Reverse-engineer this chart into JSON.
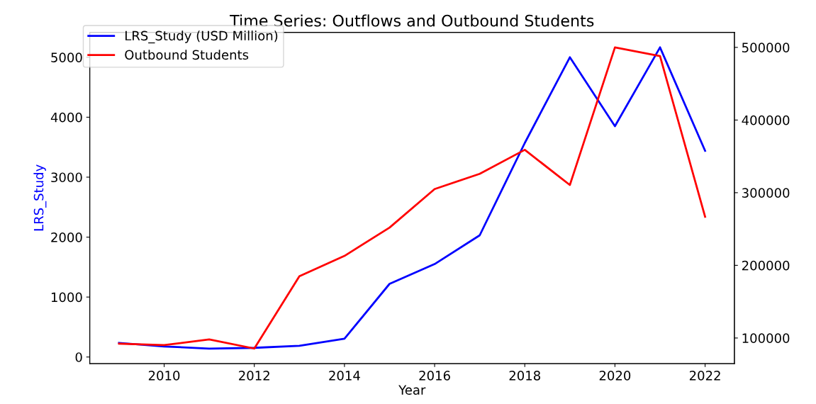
{
  "chart_data": {
    "type": "line",
    "title": "Time Series: Outflows and Outbound Students",
    "xlabel": "Year",
    "ylabel": "LRS_Study",
    "x": [
      2009,
      2010,
      2011,
      2012,
      2013,
      2014,
      2015,
      2016,
      2017,
      2018,
      2019,
      2020,
      2021,
      2022
    ],
    "series": [
      {
        "name": "LRS_Study (USD Million)",
        "color": "#0000ff",
        "values": [
          235,
          176,
          141,
          153,
          188,
          305,
          1220,
          1550,
          2030,
          3570,
          5000,
          3850,
          5165,
          3440
        ]
      },
      {
        "name": "Outbound Students",
        "color": "#ff0000",
        "axis": "y2",
        "values": [
          92300,
          90300,
          98000,
          85500,
          185000,
          213000,
          252000,
          305000,
          326000,
          359000,
          310600,
          500000,
          488000,
          267000
        ]
      }
    ],
    "xlim": [
      2008.35,
      2022.65
    ],
    "xticks": [
      2010,
      2012,
      2014,
      2016,
      2018,
      2020,
      2022
    ],
    "ylim": [
      -110,
      5416
    ],
    "yticks": [
      0,
      1000,
      2000,
      3000,
      4000,
      5000
    ],
    "y2lim": [
      64775,
      520725
    ],
    "y2ticks": [
      100000,
      200000,
      300000,
      400000,
      500000
    ],
    "legend": "top left",
    "grid": false
  }
}
